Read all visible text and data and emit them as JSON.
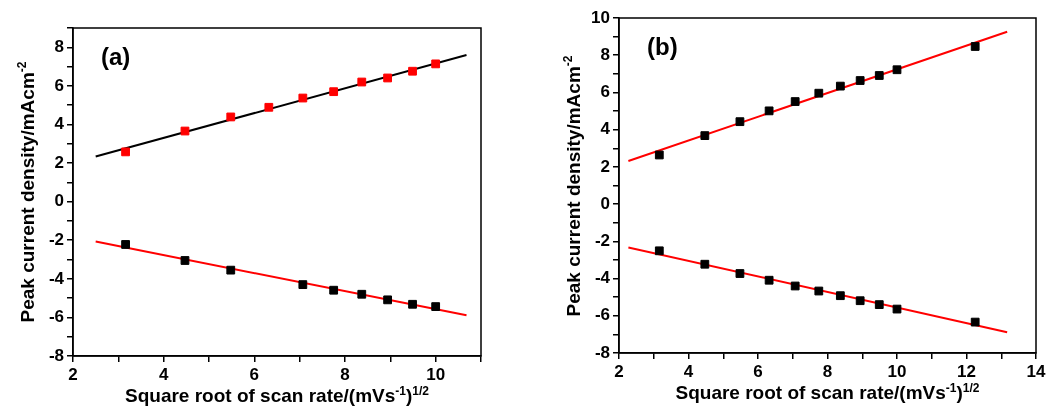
{
  "chart_data": [
    {
      "type": "scatter",
      "xlabel": "Square root of scan rate/(mVs$^{-1}$)$^{1/2}$",
      "ylabel": "Peak current density/mAcm$^{-2}$",
      "annotations": [
        "(a)"
      ],
      "marker": "square",
      "xlim": [
        2,
        11
      ],
      "ylim": [
        -8,
        9
      ],
      "xticks": [
        2,
        {
          "value": 3,
          "label": null
        },
        4,
        {
          "value": 5,
          "label": null
        },
        6,
        {
          "value": 7,
          "label": null
        },
        8,
        {
          "value": 9,
          "label": null
        },
        10,
        {
          "value": 11,
          "label": null
        }
      ],
      "yticks": [
        -8,
        {
          "value": -7,
          "label": null
        },
        -6,
        {
          "value": -5,
          "label": null
        },
        -4,
        {
          "value": -3,
          "label": null
        },
        -2,
        {
          "value": -1,
          "label": null
        },
        0,
        {
          "value": 1,
          "label": null
        },
        2,
        {
          "value": 3,
          "label": null
        },
        4,
        {
          "value": 5,
          "label": null
        },
        6,
        {
          "value": 7,
          "label": null
        },
        8,
        {
          "value": 9,
          "label": null
        }
      ],
      "series": [
        {
          "type": "scatter",
          "color": "#ff0000",
          "x": [
            3.16,
            4.47,
            5.48,
            6.32,
            7.07,
            7.75,
            8.37,
            8.94,
            9.49,
            10
          ],
          "values": [
            2.58,
            3.66,
            4.39,
            4.89,
            5.37,
            5.7,
            6.2,
            6.41,
            6.76,
            7.14
          ]
        },
        {
          "type": "line",
          "marker": "none",
          "color": "#000000",
          "x": [
            2.5,
            10.68
          ],
          "values": [
            2.34,
            7.6
          ]
        },
        {
          "type": "scatter",
          "color": "#000000",
          "x": [
            3.16,
            4.47,
            5.48,
            7.07,
            7.75,
            8.37,
            8.94,
            9.49,
            10
          ],
          "values": [
            -2.22,
            -3.05,
            -3.55,
            -4.3,
            -4.59,
            -4.8,
            -5.09,
            -5.32,
            -5.44
          ]
        },
        {
          "type": "line",
          "marker": "none",
          "color": "#ff0000",
          "x": [
            2.5,
            10.68
          ],
          "values": [
            -2.07,
            -5.89
          ]
        }
      ]
    },
    {
      "type": "scatter",
      "xlabel": "Square root of scan rate/(mVs$^{-1}$)$^{1/2}$",
      "ylabel": "Peak current density/mAcm$^{-2}$",
      "annotations": [
        "(b)"
      ],
      "marker": "square",
      "xlim": [
        2,
        14
      ],
      "ylim": [
        -8,
        10
      ],
      "xticks": [
        2,
        {
          "value": 3,
          "label": null
        },
        4,
        {
          "value": 5,
          "label": null
        },
        6,
        {
          "value": 7,
          "label": null
        },
        8,
        {
          "value": 9,
          "label": null
        },
        10,
        {
          "value": 11,
          "label": null
        },
        12,
        {
          "value": 13,
          "label": null
        },
        14
      ],
      "yticks": [
        -8,
        {
          "value": -7,
          "label": null
        },
        -6,
        {
          "value": -5,
          "label": null
        },
        -4,
        {
          "value": -3,
          "label": null
        },
        -2,
        {
          "value": -1,
          "label": null
        },
        0,
        {
          "value": 1,
          "label": null
        },
        2,
        {
          "value": 3,
          "label": null
        },
        4,
        {
          "value": 5,
          "label": null
        },
        6,
        {
          "value": 7,
          "label": null
        },
        8,
        {
          "value": 9,
          "label": null
        },
        10
      ],
      "series": [
        {
          "type": "scatter",
          "color": "#000000",
          "x": [
            3.16,
            4.47,
            5.48,
            6.32,
            7.07,
            7.75,
            8.37,
            8.94,
            9.49,
            10,
            12.25
          ],
          "values": [
            2.64,
            3.68,
            4.43,
            5.01,
            5.51,
            5.96,
            6.34,
            6.64,
            6.91,
            7.22,
            8.47
          ]
        },
        {
          "type": "line",
          "marker": "none",
          "color": "#ff0000",
          "x": [
            2.27,
            13.17
          ],
          "values": [
            2.32,
            9.26
          ]
        },
        {
          "type": "scatter",
          "color": "#000000",
          "x": [
            3.16,
            4.47,
            5.48,
            6.32,
            7.07,
            7.75,
            8.37,
            8.94,
            9.49,
            10,
            12.25
          ],
          "values": [
            -2.51,
            -3.23,
            -3.73,
            -4.09,
            -4.4,
            -4.67,
            -4.92,
            -5.19,
            -5.4,
            -5.64,
            -6.34
          ]
        },
        {
          "type": "line",
          "marker": "none",
          "color": "#ff0000",
          "x": [
            2.27,
            13.17
          ],
          "values": [
            -2.33,
            -6.88
          ]
        }
      ]
    }
  ]
}
